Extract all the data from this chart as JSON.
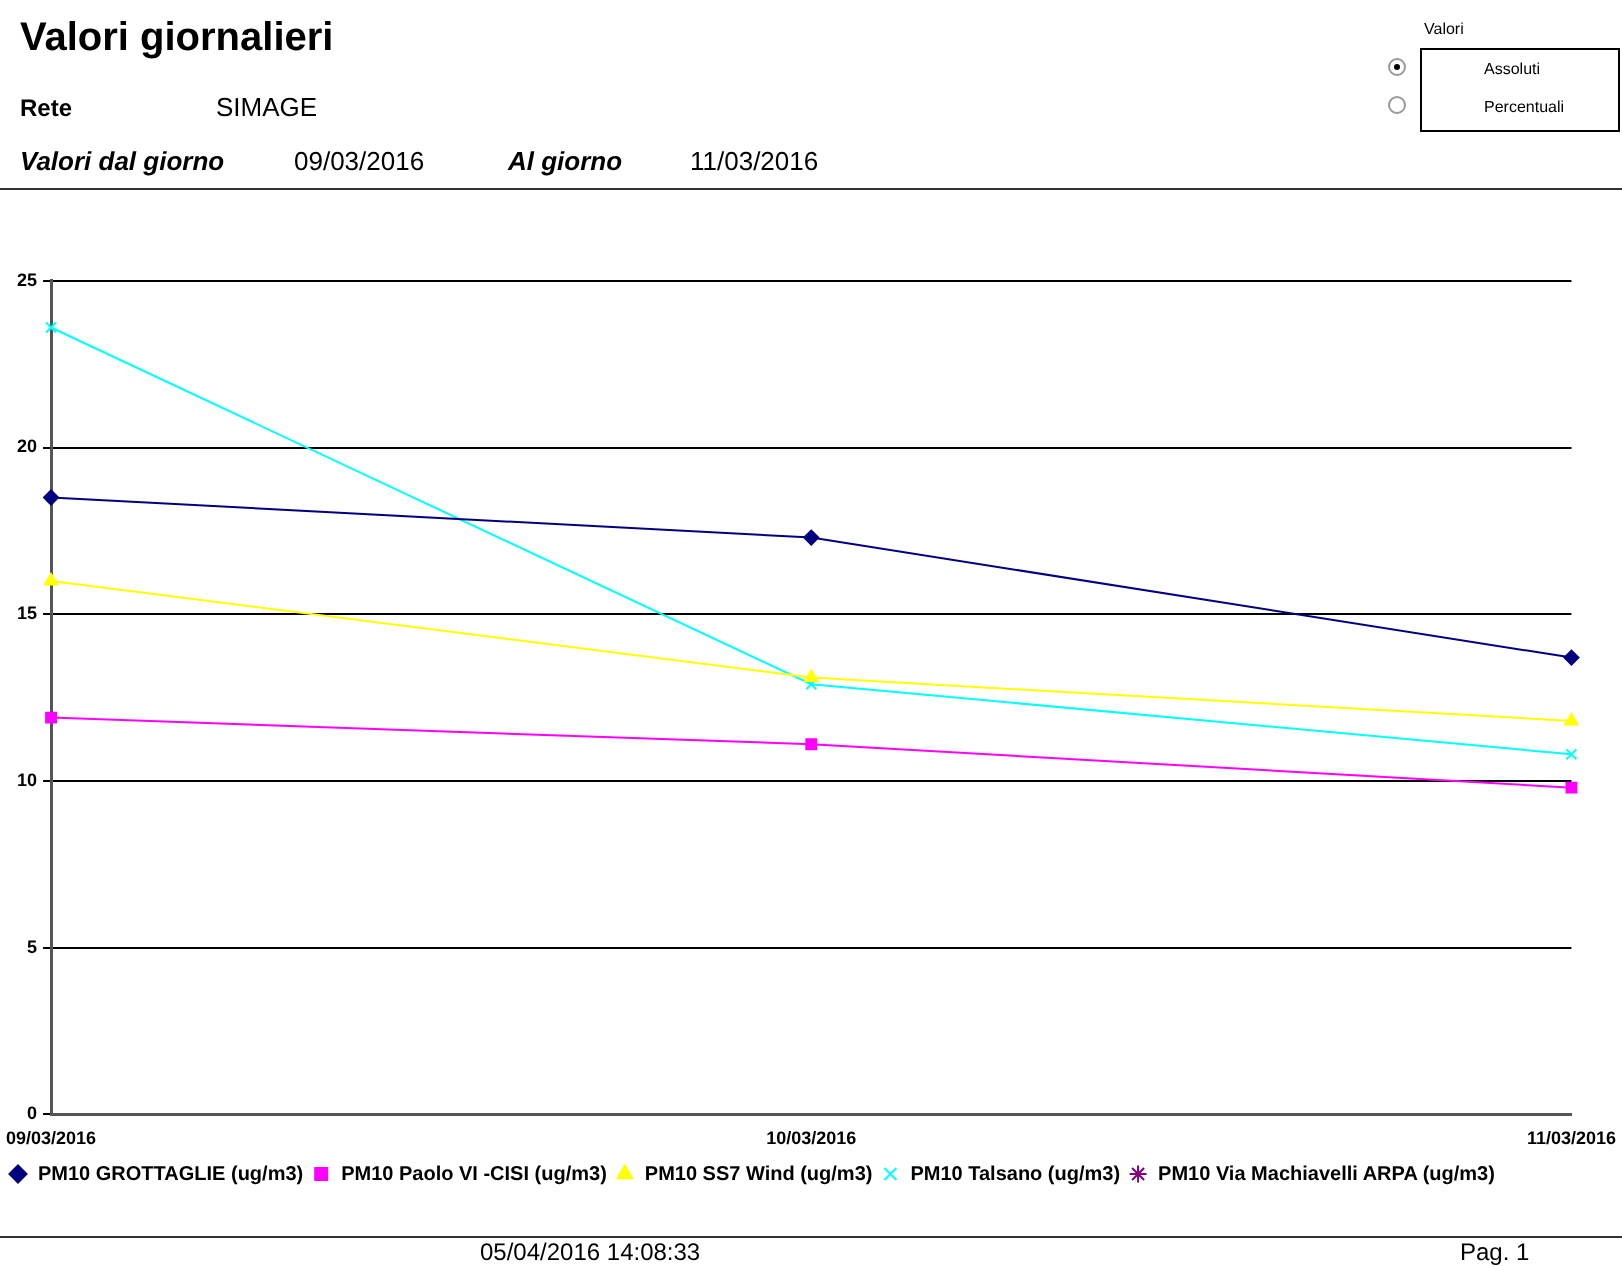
{
  "chart_data": {
    "type": "line",
    "title": "Valori giornalieri",
    "annotations": [
      "Rete",
      "SIMAGE",
      "Valori dal giorno",
      "09/03/2016",
      "Al giorno",
      "11/03/2016",
      "Valori",
      "Assoluti",
      "Percentuali",
      "05/04/2016 14:08:33",
      "Pag. 1"
    ],
    "categories": [
      "09/03/2016",
      "10/03/2016",
      "11/03/2016"
    ],
    "series": [
      {
        "name": "PM10 GROTTAGLIE (ug/m3)",
        "color": "#000080",
        "marker": "diamond",
        "values": [
          18.5,
          17.3,
          13.7
        ]
      },
      {
        "name": "PM10 Paolo VI -CISI (ug/m3)",
        "color": "#ff00ff",
        "marker": "square",
        "values": [
          11.9,
          11.1,
          9.8
        ]
      },
      {
        "name": "PM10 SS7 Wind (ug/m3)",
        "color": "#ffff00",
        "marker": "triangle",
        "values": [
          16.0,
          13.1,
          11.8
        ]
      },
      {
        "name": "PM10 Talsano (ug/m3)",
        "color": "#00ffff",
        "marker": "cross",
        "values": [
          23.6,
          12.9,
          10.8
        ]
      },
      {
        "name": "PM10 Via Machiavelli ARPA (ug/m3)",
        "color": "#800080",
        "marker": "star",
        "values": [
          null,
          null,
          null
        ]
      }
    ],
    "ylim": [
      0,
      25
    ],
    "yticks": [
      0,
      5,
      10,
      15,
      20,
      25
    ],
    "grid": "y",
    "legend": "bottom"
  }
}
